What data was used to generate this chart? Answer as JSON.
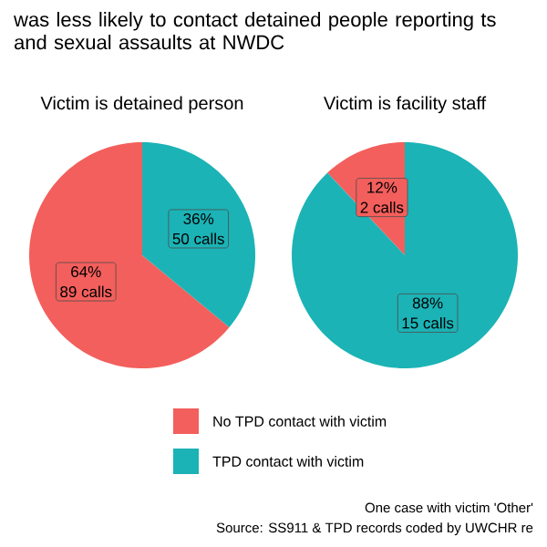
{
  "chart_data": [
    {
      "type": "pie",
      "title": "was less likely to contact detained people reporting ts and sexual assaults at NWDC",
      "subtitle": "Victim is detained person",
      "categories": [
        "No TPD contact with victim",
        "TPD contact with victim"
      ],
      "values": [
        64,
        36
      ],
      "colors": [
        "#f35f5c",
        "#1bb3b6"
      ],
      "value_labels": [
        [
          "64%",
          "89 calls"
        ],
        [
          "36%",
          "50 calls"
        ]
      ],
      "legend": "bottom"
    },
    {
      "type": "pie",
      "title": "Victim is facility staff",
      "categories": [
        null,
        null
      ],
      "values": [
        12,
        88
      ],
      "colors": [
        "#f35f5c",
        "#1bb3b6"
      ],
      "value_labels": [
        [
          "12%",
          "2 calls"
        ],
        [
          "88%",
          "15 calls"
        ]
      ],
      "annotations": [
        "One case with victim 'Other'",
        "Source: SS911 & TPD records coded by UWCHR re"
      ]
    }
  ]
}
